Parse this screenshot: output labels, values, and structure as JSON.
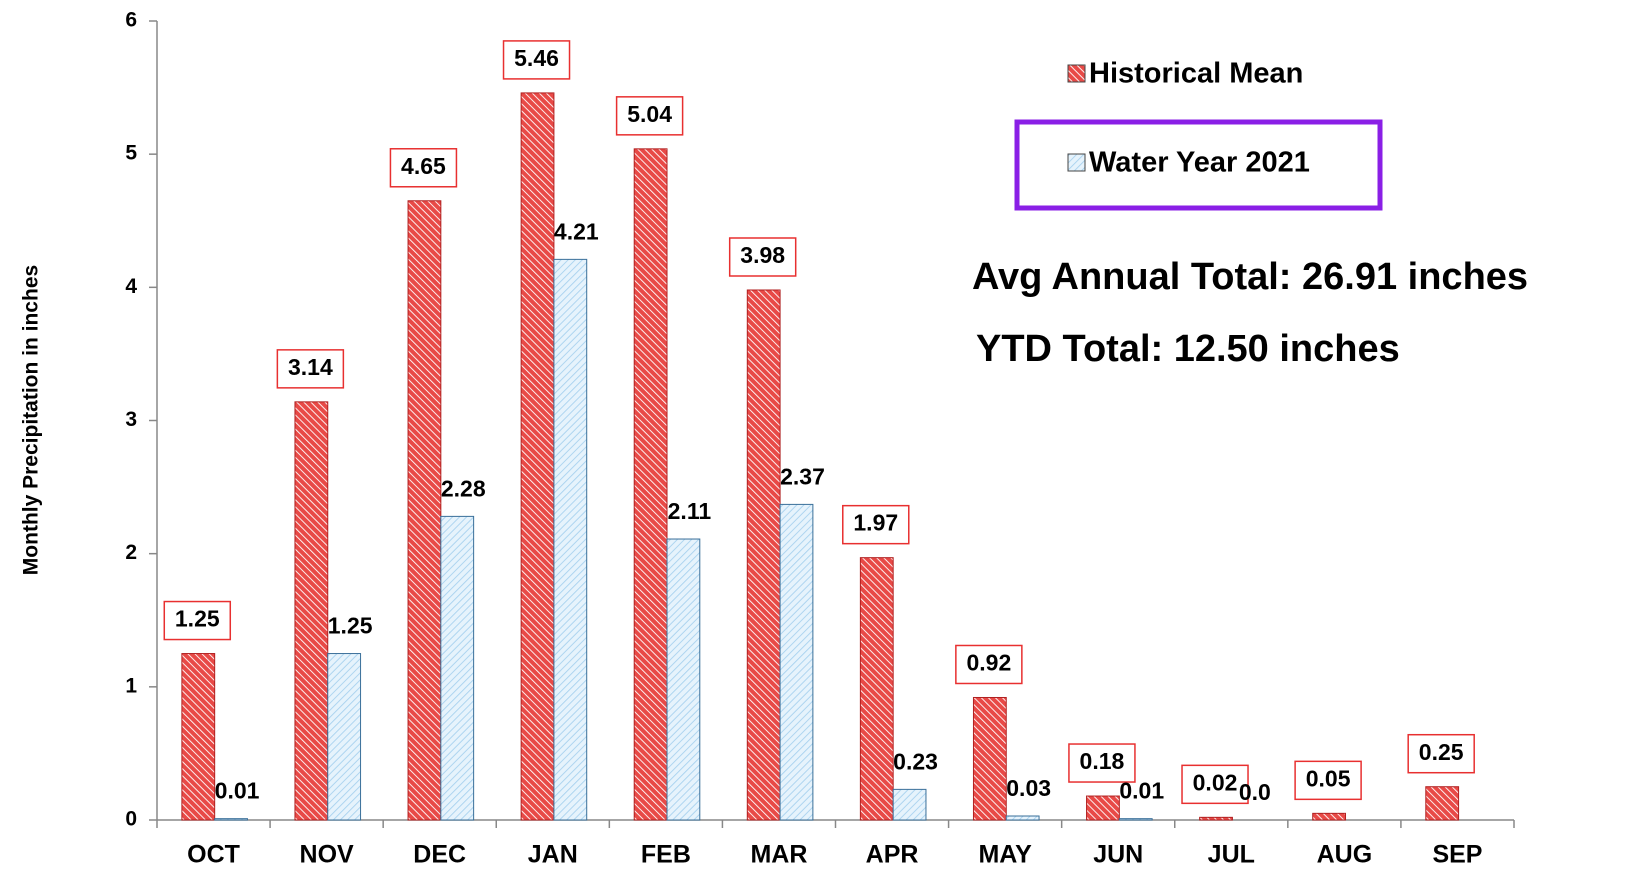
{
  "chart_data": {
    "type": "bar",
    "y_label": "Monthly Precipitation in inches",
    "categories": [
      "OCT",
      "NOV",
      "DEC",
      "JAN",
      "FEB",
      "MAR",
      "APR",
      "MAY",
      "JUN",
      "JUL",
      "AUG",
      "SEP"
    ],
    "series": [
      {
        "name": "Historical Mean",
        "color": "#e84a47",
        "values": [
          1.25,
          3.14,
          4.65,
          5.46,
          5.04,
          3.98,
          1.97,
          0.92,
          0.18,
          0.02,
          0.05,
          0.25
        ]
      },
      {
        "name": "Water Year 2021",
        "color": "#a8d2ef",
        "values": [
          0.01,
          1.25,
          2.28,
          4.21,
          2.11,
          2.37,
          0.23,
          0.03,
          0.01,
          0,
          null,
          null
        ],
        "value_labels": [
          "0.01",
          "1.25",
          "2.28",
          "4.21",
          "2.11",
          "2.37",
          "0.23",
          "0.03",
          "0.01",
          "0.0",
          null,
          null
        ]
      }
    ],
    "annotations": [
      "Avg Annual Total: 26.91 inches",
      "YTD Total: 12.50 inches"
    ],
    "ylim": [
      0,
      6
    ],
    "yticks": [
      0,
      1,
      2,
      3,
      4,
      5,
      6
    ],
    "legend": "upper right"
  }
}
